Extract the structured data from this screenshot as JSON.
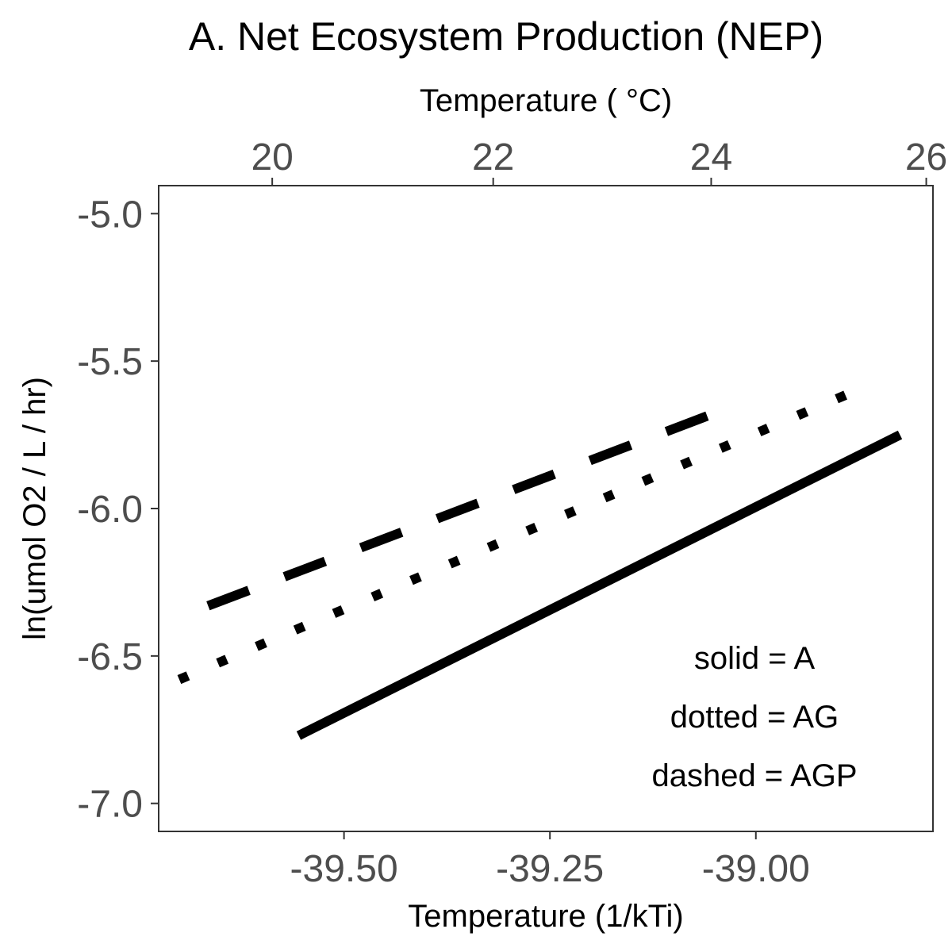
{
  "chart_data": {
    "type": "line",
    "title": "A. Net Ecosystem Production (NEP)",
    "xlabel": "Temperature (1/kTi)",
    "x2label": "Temperature ( °C)",
    "ylabel": "ln(umol O2 / L / hr)",
    "xlim": [
      -39.725,
      -38.785
    ],
    "ylim": [
      -7.095,
      -4.905
    ],
    "x_ticks": [
      -39.5,
      -39.25,
      -39.0
    ],
    "x_tick_labels": [
      "-39.50",
      "-39.25",
      "-39.00"
    ],
    "x2_ticks": [
      20,
      22,
      24,
      26
    ],
    "x2_tick_labels": [
      "20",
      "22",
      "24",
      "26"
    ],
    "y_ticks": [
      -5.0,
      -5.5,
      -6.0,
      -6.5,
      -7.0
    ],
    "y_tick_labels": [
      "-5.0",
      "-5.5",
      "-6.0",
      "-6.5",
      "-7.0"
    ],
    "grid": false,
    "legend_notes": [
      "solid = A",
      "dotted = AG",
      "dashed = AGP"
    ],
    "series": [
      {
        "style": "solid",
        "color": "#000000",
        "x": [
          -39.555,
          -38.825
        ],
        "y": [
          -6.77,
          -5.75
        ]
      },
      {
        "style": "dotted",
        "color": "#000000",
        "x": [
          -39.7,
          -38.87
        ],
        "y": [
          -6.58,
          -5.59
        ]
      },
      {
        "style": "dashed",
        "color": "#000000",
        "x": [
          -39.665,
          -39.025
        ],
        "y": [
          -6.33,
          -5.65
        ]
      }
    ]
  }
}
